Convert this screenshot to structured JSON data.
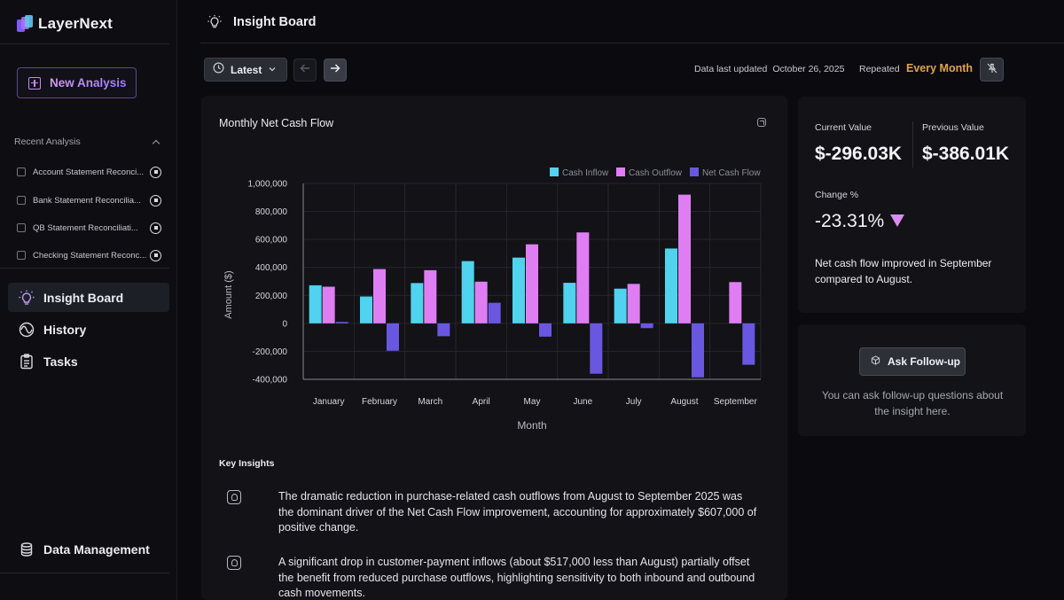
{
  "app": {
    "name": "LayerNext"
  },
  "sidebar": {
    "new_analysis_label": "New Analysis",
    "recent_title": "Recent Analysis",
    "recent": [
      {
        "label": "Account Statement Reconci..."
      },
      {
        "label": "Bank Statement Reconcilia..."
      },
      {
        "label": "QB Statement Reconciliati..."
      },
      {
        "label": "Checking Statement Reconc..."
      }
    ],
    "nav": [
      {
        "label": "Insight Board",
        "icon": "bulb-icon",
        "active": true
      },
      {
        "label": "History",
        "icon": "history-icon",
        "active": false
      },
      {
        "label": "Tasks",
        "icon": "tasks-icon",
        "active": false
      }
    ],
    "data_management_label": "Data Management"
  },
  "header": {
    "title": "Insight Board"
  },
  "toolbar": {
    "latest_label": "Latest",
    "updated_label": "Data last updated",
    "updated_date": "October 26, 2025",
    "repeated_label": "Repeated",
    "repeated_value": "Every Month",
    "accent_color": "#e2a14a"
  },
  "chart_panel": {
    "title": "Monthly Net Cash Flow",
    "key_insights_title": "Key Insights",
    "insights": [
      "The dramatic reduction in purchase-related cash outflows from August to September 2025 was the dominant driver of the Net Cash Flow improvement, accounting for approximately $607,000 of positive change.",
      "A significant drop in customer-payment inflows (about $517,000 less than August) partially offset the benefit from reduced purchase outflows, highlighting sensitivity to both inbound and outbound cash movements."
    ]
  },
  "chart_data": {
    "type": "bar",
    "title": "",
    "xlabel": "Month",
    "ylabel": "Amount ($)",
    "ylim": [
      -400000,
      1000000
    ],
    "yticks": [
      1000000,
      800000,
      600000,
      400000,
      200000,
      0,
      -200000,
      -400000
    ],
    "ytick_labels": [
      "1,000,000",
      "800,000",
      "600,000",
      "400,000",
      "200,000",
      "0",
      "-200,000",
      "-400,000"
    ],
    "categories": [
      "January",
      "February",
      "March",
      "April",
      "May",
      "June",
      "July",
      "August",
      "September"
    ],
    "legend_position": "top-right",
    "grid": true,
    "series": [
      {
        "name": "Cash Inflow",
        "color": "#4fd3ee",
        "values": [
          272000,
          192000,
          288000,
          445000,
          470000,
          290000,
          248000,
          535000,
          0
        ]
      },
      {
        "name": "Cash Outflow",
        "color": "#df7ef2",
        "values": [
          262000,
          388000,
          380000,
          298000,
          565000,
          650000,
          282000,
          920000,
          295000
        ]
      },
      {
        "name": "Net Cash Flow",
        "color": "#6a57e0",
        "values": [
          10000,
          -196000,
          -92000,
          147000,
          -95000,
          -360000,
          -34000,
          -386010,
          -296030
        ]
      }
    ]
  },
  "values_panel": {
    "current_label": "Current Value",
    "current_value": "$-296.03K",
    "previous_label": "Previous Value",
    "previous_value": "$-386.01K",
    "change_label": "Change %",
    "change_value": "-23.31%",
    "change_color": "#d98ef0",
    "summary": "Net cash flow improved in September compared to August."
  },
  "ask_panel": {
    "button_label": "Ask Follow-up",
    "help_text": "You can ask follow-up questions about the insight here."
  }
}
